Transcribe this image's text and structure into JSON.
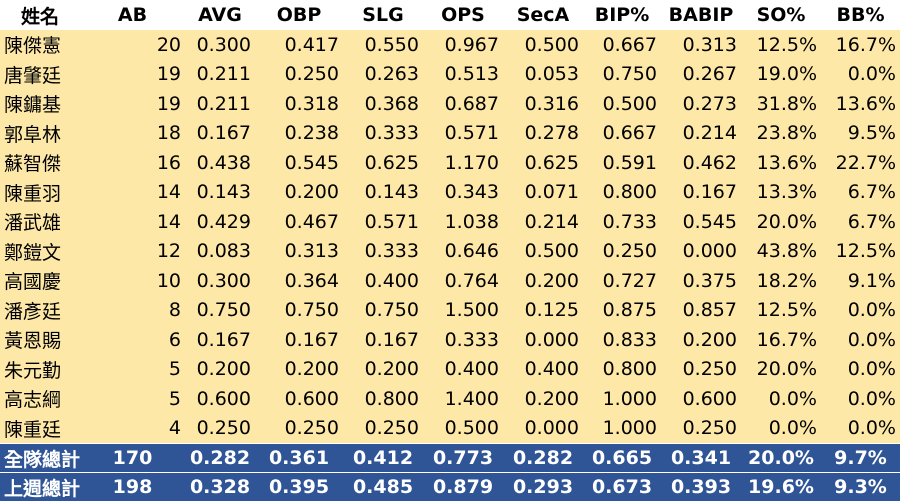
{
  "table": {
    "header": [
      "姓名",
      "AB",
      "AVG",
      "OBP",
      "SLG",
      "OPS",
      "SecA",
      "BIP%",
      "BABIP",
      "SO%",
      "BB%"
    ],
    "rows": [
      [
        "陳傑憲",
        "20",
        "0.300",
        "0.417",
        "0.550",
        "0.967",
        "0.500",
        "0.667",
        "0.313",
        "12.5%",
        "16.7%"
      ],
      [
        "唐肇廷",
        "19",
        "0.211",
        "0.250",
        "0.263",
        "0.513",
        "0.053",
        "0.750",
        "0.267",
        "19.0%",
        "0.0%"
      ],
      [
        "陳鏞基",
        "19",
        "0.211",
        "0.318",
        "0.368",
        "0.687",
        "0.316",
        "0.500",
        "0.273",
        "31.8%",
        "13.6%"
      ],
      [
        "郭阜林",
        "18",
        "0.167",
        "0.238",
        "0.333",
        "0.571",
        "0.278",
        "0.667",
        "0.214",
        "23.8%",
        "9.5%"
      ],
      [
        "蘇智傑",
        "16",
        "0.438",
        "0.545",
        "0.625",
        "1.170",
        "0.625",
        "0.591",
        "0.462",
        "13.6%",
        "22.7%"
      ],
      [
        "陳重羽",
        "14",
        "0.143",
        "0.200",
        "0.143",
        "0.343",
        "0.071",
        "0.800",
        "0.167",
        "13.3%",
        "6.7%"
      ],
      [
        "潘武雄",
        "14",
        "0.429",
        "0.467",
        "0.571",
        "1.038",
        "0.214",
        "0.733",
        "0.545",
        "20.0%",
        "6.7%"
      ],
      [
        "鄭鎧文",
        "12",
        "0.083",
        "0.313",
        "0.333",
        "0.646",
        "0.500",
        "0.250",
        "0.000",
        "43.8%",
        "12.5%"
      ],
      [
        "高國慶",
        "10",
        "0.300",
        "0.364",
        "0.400",
        "0.764",
        "0.200",
        "0.727",
        "0.375",
        "18.2%",
        "9.1%"
      ],
      [
        "潘彥廷",
        "8",
        "0.750",
        "0.750",
        "0.750",
        "1.500",
        "0.125",
        "0.875",
        "0.857",
        "12.5%",
        "0.0%"
      ],
      [
        "黃恩賜",
        "6",
        "0.167",
        "0.167",
        "0.167",
        "0.333",
        "0.000",
        "0.833",
        "0.200",
        "16.7%",
        "0.0%"
      ],
      [
        "朱元勤",
        "5",
        "0.200",
        "0.200",
        "0.200",
        "0.400",
        "0.400",
        "0.800",
        "0.250",
        "20.0%",
        "0.0%"
      ],
      [
        "高志綱",
        "5",
        "0.600",
        "0.600",
        "0.800",
        "1.400",
        "0.200",
        "1.000",
        "0.600",
        "0.0%",
        "0.0%"
      ],
      [
        "陳重廷",
        "4",
        "0.250",
        "0.250",
        "0.250",
        "0.500",
        "0.000",
        "1.000",
        "0.250",
        "0.0%",
        "0.0%"
      ]
    ],
    "footer": [
      [
        "全隊總計",
        "170",
        "0.282",
        "0.361",
        "0.412",
        "0.773",
        "0.282",
        "0.665",
        "0.341",
        "20.0%",
        "9.7%"
      ],
      [
        "上週總計",
        "198",
        "0.328",
        "0.395",
        "0.485",
        "0.879",
        "0.293",
        "0.673",
        "0.393",
        "19.6%",
        "9.3%"
      ]
    ]
  }
}
